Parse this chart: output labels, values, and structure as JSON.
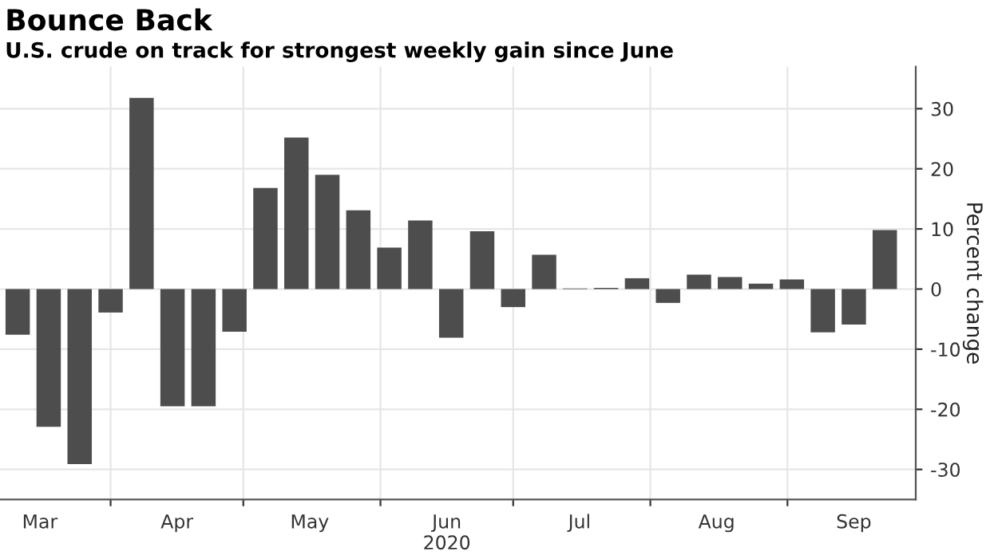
{
  "chart_data": {
    "type": "bar",
    "title": "Bounce Back",
    "subtitle": "U.S. crude on track for strongest weekly gain since June",
    "ylabel": "Percent change",
    "x": [
      "2020-03-11",
      "2020-03-18",
      "2020-03-25",
      "2020-04-01",
      "2020-04-08",
      "2020-04-15",
      "2020-04-22",
      "2020-04-29",
      "2020-05-06",
      "2020-05-13",
      "2020-05-20",
      "2020-05-27",
      "2020-06-03",
      "2020-06-10",
      "2020-06-17",
      "2020-06-24",
      "2020-07-01",
      "2020-07-08",
      "2020-07-15",
      "2020-07-22",
      "2020-07-29",
      "2020-08-05",
      "2020-08-12",
      "2020-08-19",
      "2020-08-26",
      "2020-09-02",
      "2020-09-09",
      "2020-09-16",
      "2020-09-23"
    ],
    "values": [
      -7.6,
      -22.9,
      -29.1,
      -3.9,
      31.8,
      -19.5,
      -19.5,
      -7.1,
      16.8,
      25.2,
      19.0,
      13.1,
      6.9,
      11.4,
      -8.1,
      9.6,
      -3.0,
      5.7,
      0.1,
      0.2,
      1.8,
      -2.3,
      2.4,
      2.0,
      0.9,
      1.6,
      -7.2,
      -5.9,
      9.8
    ],
    "color": "#4d4d4d",
    "xlim": [
      "2020-03-07",
      "2020-09-30"
    ],
    "xticks": [
      {
        "value": "2020-03-16",
        "label": "Mar"
      },
      {
        "value": "2020-04-01",
        "label": null
      },
      {
        "value": "2020-04-16",
        "label": "Apr"
      },
      {
        "value": "2020-05-01",
        "label": null
      },
      {
        "value": "2020-05-16",
        "label": "May"
      },
      {
        "value": "2020-06-01",
        "label": null
      },
      {
        "value": "2020-06-16",
        "label": "Jun\n2020"
      },
      {
        "value": "2020-07-01",
        "label": null
      },
      {
        "value": "2020-07-16",
        "label": "Jul"
      },
      {
        "value": "2020-08-01",
        "label": null
      },
      {
        "value": "2020-08-16",
        "label": "Aug"
      },
      {
        "value": "2020-09-01",
        "label": null
      },
      {
        "value": "2020-09-16",
        "label": "Sep"
      }
    ],
    "ylim": [
      -35,
      37
    ],
    "yticks": [
      -30,
      -20,
      -10,
      0,
      10,
      20,
      30
    ],
    "grid": true
  }
}
